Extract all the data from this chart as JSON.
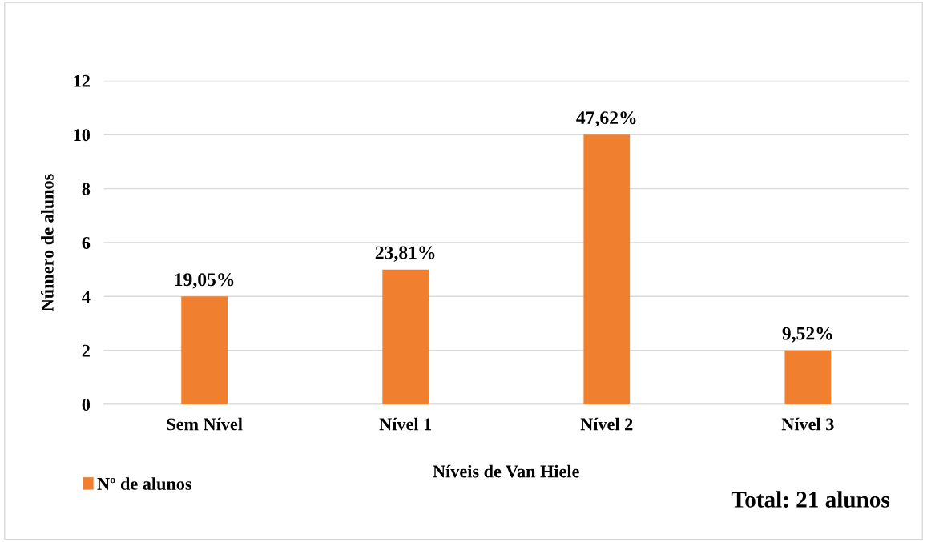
{
  "chart_data": {
    "type": "bar",
    "xlabel": "Níveis de Van Hiele",
    "ylabel": "Número de alunos",
    "categories": [
      "Sem Nível",
      "Nível 1",
      "Nível 2",
      "Nível 3"
    ],
    "series": [
      {
        "name": "Nº de alunos",
        "color": "#f08030",
        "values": [
          4,
          5,
          10,
          2
        ]
      }
    ],
    "ylim": [
      0,
      12
    ],
    "yticks": [
      0,
      2,
      4,
      6,
      8,
      10,
      12
    ],
    "grid": "y",
    "legend": "bottom left",
    "annotations": [
      {
        "text": "19,05%",
        "x": "Sem Nível",
        "y": 4
      },
      {
        "text": "23,81%",
        "x": "Nível 1",
        "y": 5
      },
      {
        "text": "47,62%",
        "x": "Nível 2",
        "y": 10
      },
      {
        "text": "9,52%",
        "x": "Nível 3",
        "y": 2
      },
      "Total: 21 alunos"
    ]
  }
}
